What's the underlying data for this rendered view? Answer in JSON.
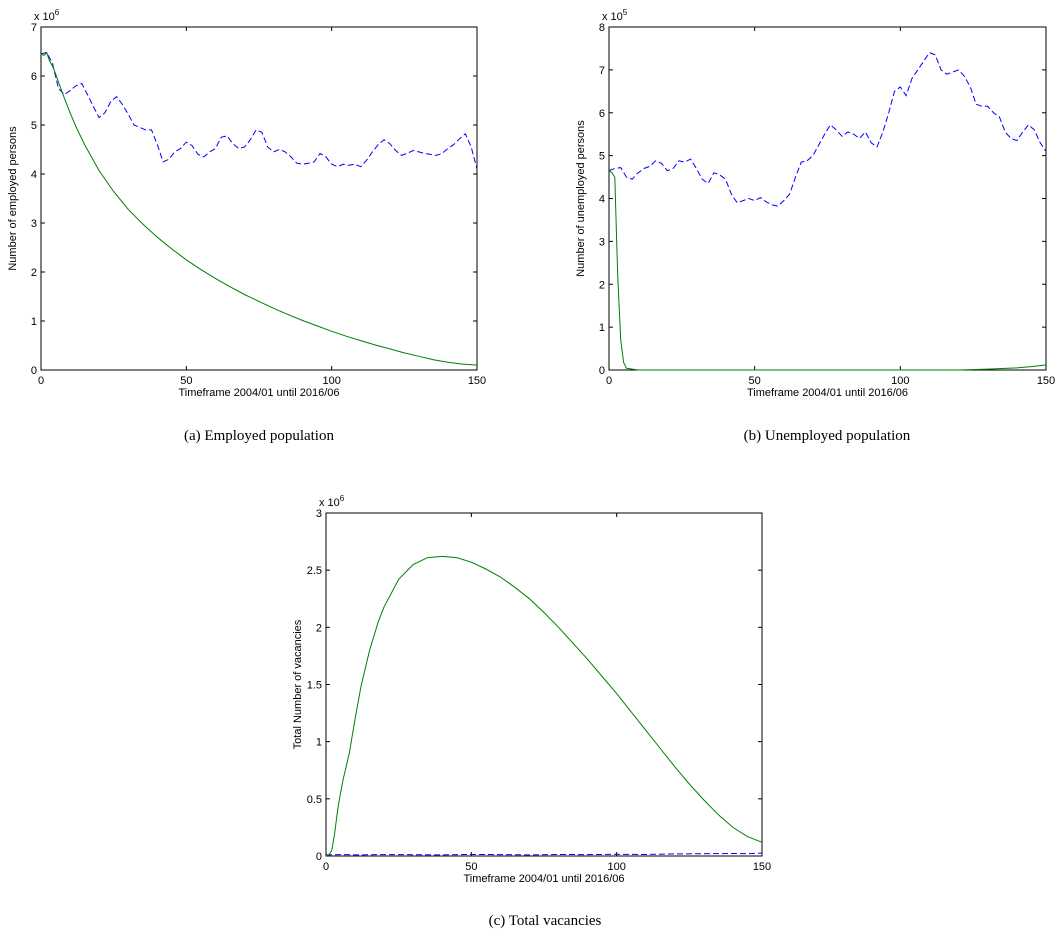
{
  "chart_data": [
    {
      "type": "line",
      "panel": "a",
      "caption": "(a) Employed population",
      "xlabel": "Timeframe 2004/01 until 2016/06",
      "ylabel": "Number of employed persons",
      "multiplier": "x 10",
      "exponent": "6",
      "xlim": [
        0,
        150
      ],
      "ylim": [
        0,
        7
      ],
      "xticks": [
        "0",
        "50",
        "100",
        "150"
      ],
      "yticks": [
        "0",
        "1",
        "2",
        "3",
        "4",
        "5",
        "6",
        "7"
      ],
      "series": [
        {
          "style": "dashed",
          "color": "#0000ff",
          "x": [
            0,
            2,
            4,
            6,
            8,
            10,
            12,
            14,
            16,
            18,
            20,
            22,
            24,
            26,
            28,
            30,
            32,
            34,
            36,
            38,
            40,
            42,
            44,
            46,
            48,
            50,
            52,
            54,
            56,
            58,
            60,
            62,
            64,
            66,
            68,
            70,
            72,
            74,
            76,
            78,
            80,
            82,
            84,
            86,
            88,
            90,
            92,
            94,
            96,
            98,
            100,
            102,
            104,
            106,
            108,
            110,
            112,
            114,
            116,
            118,
            120,
            122,
            124,
            126,
            128,
            130,
            132,
            134,
            136,
            138,
            140,
            142,
            144,
            146,
            148,
            150
          ],
          "y": [
            6.45,
            6.48,
            6.25,
            5.75,
            5.62,
            5.7,
            5.8,
            5.85,
            5.62,
            5.38,
            5.15,
            5.25,
            5.48,
            5.58,
            5.42,
            5.22,
            5.0,
            4.95,
            4.9,
            4.9,
            4.6,
            4.25,
            4.3,
            4.45,
            4.52,
            4.65,
            4.58,
            4.4,
            4.35,
            4.45,
            4.52,
            4.75,
            4.78,
            4.62,
            4.52,
            4.55,
            4.7,
            4.9,
            4.85,
            4.55,
            4.45,
            4.5,
            4.45,
            4.35,
            4.22,
            4.2,
            4.22,
            4.25,
            4.42,
            4.35,
            4.2,
            4.15,
            4.2,
            4.18,
            4.2,
            4.15,
            4.28,
            4.45,
            4.6,
            4.7,
            4.62,
            4.48,
            4.38,
            4.42,
            4.48,
            4.45,
            4.42,
            4.4,
            4.38,
            4.42,
            4.52,
            4.6,
            4.72,
            4.82,
            4.55,
            4.1
          ]
        },
        {
          "style": "solid",
          "color": "#007f00",
          "x": [
            0,
            1,
            2,
            3,
            4,
            5,
            6,
            8,
            10,
            12,
            15,
            20,
            25,
            30,
            35,
            40,
            45,
            50,
            55,
            60,
            65,
            70,
            75,
            80,
            85,
            90,
            95,
            100,
            105,
            110,
            115,
            120,
            125,
            130,
            135,
            140,
            145,
            150
          ],
          "y": [
            6.45,
            6.42,
            6.47,
            6.3,
            6.2,
            6.05,
            5.88,
            5.55,
            5.25,
            4.97,
            4.6,
            4.07,
            3.64,
            3.28,
            2.98,
            2.71,
            2.47,
            2.25,
            2.05,
            1.87,
            1.7,
            1.54,
            1.4,
            1.26,
            1.13,
            1.01,
            0.9,
            0.79,
            0.69,
            0.6,
            0.51,
            0.43,
            0.35,
            0.28,
            0.21,
            0.16,
            0.12,
            0.1
          ]
        }
      ]
    },
    {
      "type": "line",
      "panel": "b",
      "caption": "(b) Unemployed population",
      "xlabel": "Timeframe 2004/01 until 2016/06",
      "ylabel": "Number of unemployed persons",
      "multiplier": "x 10",
      "exponent": "5",
      "xlim": [
        0,
        150
      ],
      "ylim": [
        0,
        8
      ],
      "xticks": [
        "0",
        "50",
        "100",
        "150"
      ],
      "yticks": [
        "0",
        "1",
        "2",
        "3",
        "4",
        "5",
        "6",
        "7",
        "8"
      ],
      "series": [
        {
          "style": "dashed",
          "color": "#0000ff",
          "x": [
            0,
            2,
            4,
            6,
            8,
            10,
            12,
            14,
            16,
            18,
            20,
            22,
            24,
            26,
            28,
            30,
            32,
            34,
            36,
            38,
            40,
            42,
            44,
            46,
            48,
            50,
            52,
            54,
            56,
            58,
            60,
            62,
            64,
            66,
            68,
            70,
            72,
            74,
            76,
            78,
            80,
            82,
            84,
            86,
            88,
            90,
            92,
            94,
            96,
            98,
            100,
            102,
            104,
            106,
            108,
            110,
            112,
            114,
            116,
            118,
            120,
            122,
            124,
            126,
            128,
            130,
            132,
            134,
            136,
            138,
            140,
            142,
            144,
            146,
            148,
            150
          ],
          "y": [
            4.65,
            4.7,
            4.72,
            4.5,
            4.45,
            4.6,
            4.7,
            4.75,
            4.88,
            4.82,
            4.65,
            4.7,
            4.88,
            4.85,
            4.92,
            4.7,
            4.45,
            4.35,
            4.6,
            4.55,
            4.45,
            4.1,
            3.9,
            3.95,
            4.0,
            3.95,
            4.02,
            3.92,
            3.85,
            3.82,
            3.95,
            4.1,
            4.5,
            4.85,
            4.88,
            5.0,
            5.25,
            5.5,
            5.72,
            5.6,
            5.45,
            5.55,
            5.5,
            5.4,
            5.55,
            5.3,
            5.2,
            5.55,
            6.0,
            6.5,
            6.6,
            6.4,
            6.8,
            7.0,
            7.2,
            7.4,
            7.35,
            7.0,
            6.9,
            6.95,
            7.0,
            6.85,
            6.6,
            6.2,
            6.15,
            6.15,
            6.0,
            5.9,
            5.55,
            5.4,
            5.35,
            5.55,
            5.72,
            5.6,
            5.3,
            5.1
          ]
        },
        {
          "style": "solid",
          "color": "#007f00",
          "x": [
            0,
            1,
            2,
            3,
            4,
            5,
            6,
            8,
            10,
            20,
            40,
            60,
            80,
            100,
            120,
            130,
            140,
            145,
            150
          ],
          "y": [
            4.65,
            4.6,
            4.5,
            2.2,
            0.7,
            0.18,
            0.04,
            0.02,
            0.0,
            0.0,
            0.0,
            0.0,
            0.0,
            0.0,
            0.0,
            0.02,
            0.05,
            0.08,
            0.12
          ]
        }
      ]
    },
    {
      "type": "line",
      "panel": "c",
      "caption": "(c) Total vacancies",
      "xlabel": "Timeframe 2004/01 until 2016/06",
      "ylabel": "Total Number of vacancies",
      "multiplier": "x 10",
      "exponent": "6",
      "xlim": [
        0,
        150
      ],
      "ylim": [
        0,
        3
      ],
      "xticks": [
        "0",
        "50",
        "100",
        "150"
      ],
      "yticks": [
        "0",
        "0.5",
        "1",
        "1.5",
        "2",
        "2.5",
        "3"
      ],
      "series": [
        {
          "style": "dashed",
          "color": "#0000ff",
          "x": [
            0,
            5,
            10,
            20,
            30,
            40,
            50,
            60,
            70,
            80,
            90,
            100,
            110,
            120,
            130,
            140,
            145,
            150
          ],
          "y": [
            0.01,
            0.012,
            0.01,
            0.012,
            0.011,
            0.01,
            0.013,
            0.012,
            0.01,
            0.013,
            0.012,
            0.015,
            0.013,
            0.018,
            0.02,
            0.022,
            0.02,
            0.025
          ]
        },
        {
          "style": "solid",
          "color": "#007f00",
          "x": [
            0,
            1,
            2,
            3,
            4,
            5,
            6,
            8,
            10,
            12,
            15,
            18,
            20,
            25,
            30,
            35,
            40,
            45,
            50,
            55,
            60,
            65,
            70,
            75,
            80,
            85,
            90,
            95,
            100,
            105,
            110,
            115,
            120,
            125,
            130,
            135,
            140,
            145,
            150
          ],
          "y": [
            0,
            0.01,
            0.05,
            0.2,
            0.4,
            0.55,
            0.68,
            0.9,
            1.2,
            1.48,
            1.8,
            2.05,
            2.18,
            2.42,
            2.55,
            2.61,
            2.62,
            2.61,
            2.57,
            2.51,
            2.44,
            2.35,
            2.25,
            2.13,
            2.0,
            1.86,
            1.72,
            1.57,
            1.42,
            1.26,
            1.1,
            0.94,
            0.78,
            0.63,
            0.49,
            0.36,
            0.25,
            0.17,
            0.12
          ]
        }
      ]
    }
  ]
}
